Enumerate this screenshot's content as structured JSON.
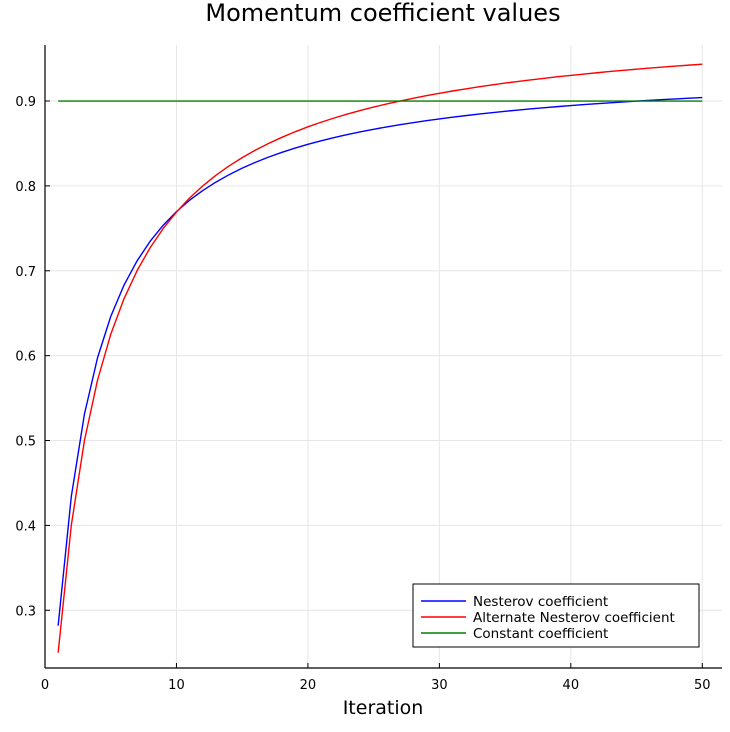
{
  "chart_data": {
    "type": "line",
    "title": "Momentum coefficient values",
    "xlabel": "Iteration",
    "ylabel": "",
    "xlim": [
      0,
      51.5
    ],
    "ylim": [
      0.232,
      0.966
    ],
    "xticks": [
      0,
      10,
      20,
      30,
      40,
      50
    ],
    "yticks": [
      0.3,
      0.4,
      0.5,
      0.6,
      0.7,
      0.8,
      0.9
    ],
    "grid": true,
    "legend_position": "bottom-right",
    "series": [
      {
        "name": "Nesterov coefficient",
        "color": "#0000ff",
        "x": [
          1,
          2,
          3,
          4,
          5,
          6,
          7,
          8,
          9,
          10,
          11,
          12,
          13,
          14,
          15,
          16,
          17,
          18,
          19,
          20,
          21,
          22,
          23,
          24,
          25,
          26,
          27,
          28,
          29,
          30,
          31,
          32,
          33,
          34,
          35,
          36,
          37,
          38,
          39,
          40,
          41,
          42,
          43,
          44,
          45,
          46,
          47,
          48,
          49,
          50
        ],
        "y": [
          0.2818,
          0.434,
          0.5311,
          0.5977,
          0.6461,
          0.6828,
          0.7116,
          0.7348,
          0.7538,
          0.7697,
          0.7831,
          0.7945,
          0.8045,
          0.8132,
          0.8209,
          0.8277,
          0.8339,
          0.8394,
          0.8444,
          0.849,
          0.8531,
          0.8569,
          0.8605,
          0.8637,
          0.8667,
          0.8695,
          0.8721,
          0.8745,
          0.8768,
          0.8789,
          0.8809,
          0.8828,
          0.8846,
          0.8863,
          0.8879,
          0.8894,
          0.8908,
          0.8921,
          0.8934,
          0.8946,
          0.8958,
          0.8969,
          0.8979,
          0.8989,
          0.8999,
          0.9008,
          0.9017,
          0.9025,
          0.9033,
          0.9041
        ]
      },
      {
        "name": "Alternate Nesterov coefficient",
        "color": "#ff0000",
        "x": [
          1,
          2,
          3,
          4,
          5,
          6,
          7,
          8,
          9,
          10,
          11,
          12,
          13,
          14,
          15,
          16,
          17,
          18,
          19,
          20,
          21,
          22,
          23,
          24,
          25,
          26,
          27,
          28,
          29,
          30,
          31,
          32,
          33,
          34,
          35,
          36,
          37,
          38,
          39,
          40,
          41,
          42,
          43,
          44,
          45,
          46,
          47,
          48,
          49,
          50
        ],
        "y": [
          0.25,
          0.4,
          0.5,
          0.5714,
          0.625,
          0.6667,
          0.7,
          0.7273,
          0.75,
          0.7692,
          0.7857,
          0.8,
          0.8125,
          0.8235,
          0.8333,
          0.8421,
          0.85,
          0.8571,
          0.8636,
          0.8696,
          0.875,
          0.88,
          0.8846,
          0.8889,
          0.8929,
          0.8966,
          0.9,
          0.9032,
          0.9063,
          0.9091,
          0.9118,
          0.9143,
          0.9167,
          0.9189,
          0.9211,
          0.9231,
          0.925,
          0.9268,
          0.9286,
          0.9302,
          0.9318,
          0.9333,
          0.9348,
          0.9362,
          0.9375,
          0.9388,
          0.94,
          0.9412,
          0.9423,
          0.9434
        ]
      },
      {
        "name": "Constant coefficient",
        "color": "#008000",
        "x": [
          1,
          50
        ],
        "y": [
          0.9,
          0.9
        ]
      }
    ]
  }
}
